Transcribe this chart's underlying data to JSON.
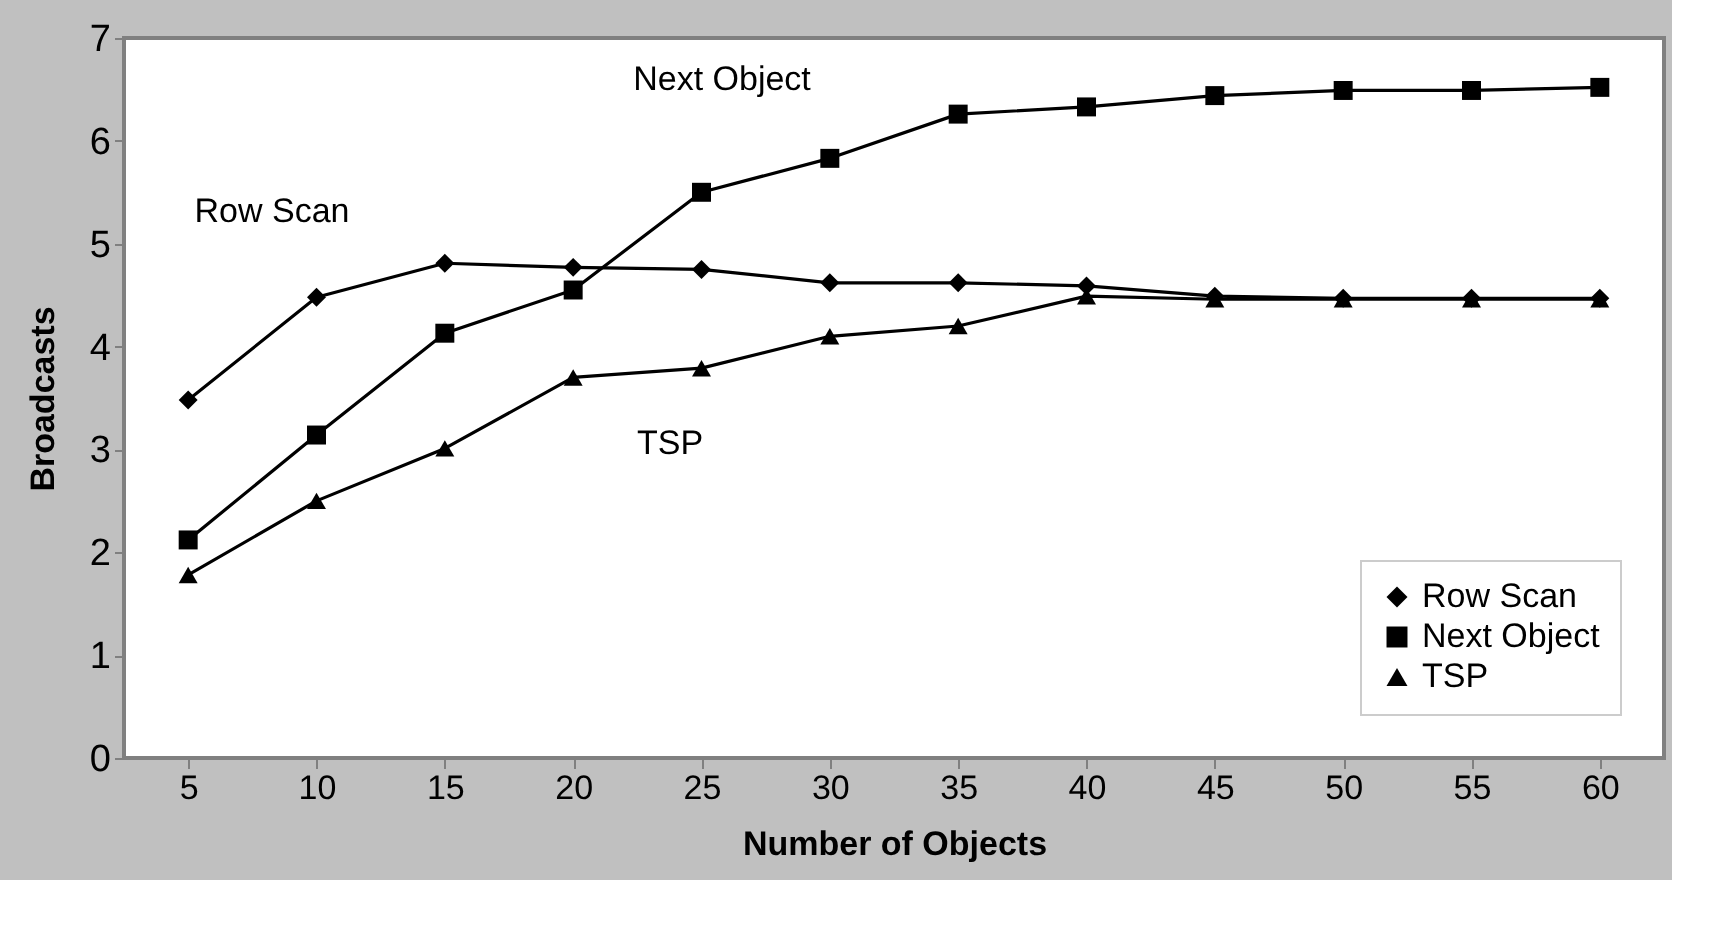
{
  "chart_data": {
    "type": "line",
    "xlabel": "Number of Objects",
    "ylabel": "Broadcasts",
    "categories": [
      "5",
      "10",
      "15",
      "20",
      "25",
      "30",
      "35",
      "40",
      "45",
      "50",
      "55",
      "60"
    ],
    "series": [
      {
        "name": "Row Scan",
        "color": "#000000",
        "marker": "diamond",
        "values": [
          3.48,
          4.48,
          4.81,
          4.77,
          4.75,
          4.62,
          4.62,
          4.59,
          4.49,
          4.47,
          4.47,
          4.47
        ]
      },
      {
        "name": "Next Object",
        "color": "#000000",
        "marker": "square",
        "values": [
          2.12,
          3.14,
          4.13,
          4.55,
          5.5,
          5.83,
          6.26,
          6.33,
          6.44,
          6.49,
          6.49,
          6.52
        ]
      },
      {
        "name": "TSP",
        "color": "#000000",
        "marker": "triangle",
        "values": [
          1.78,
          2.5,
          3.01,
          3.7,
          3.79,
          4.1,
          4.2,
          4.49,
          4.46,
          4.46,
          4.46,
          4.46
        ]
      }
    ],
    "ylim": [
      0,
      7
    ],
    "yticks": [
      0,
      1,
      2,
      3,
      4,
      5,
      6,
      7
    ],
    "grid": false,
    "legend": "bottom right",
    "line_style": "solid",
    "annotations": [
      "Row Scan",
      "Next Object",
      "TSP"
    ]
  }
}
